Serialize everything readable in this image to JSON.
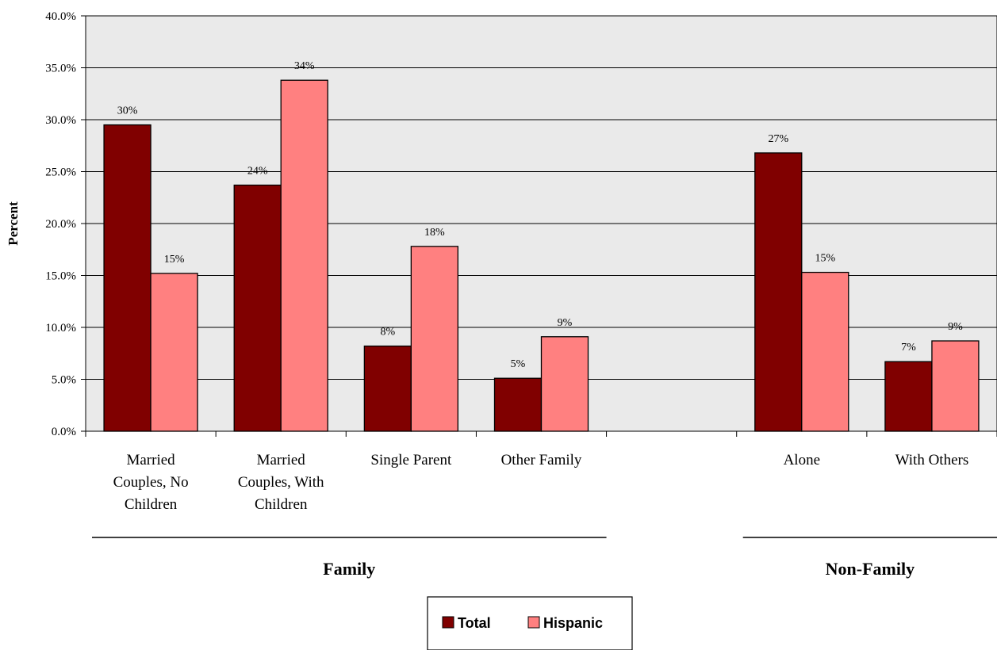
{
  "chart_data": {
    "type": "bar",
    "ylabel": "Percent",
    "ylim": [
      0,
      40
    ],
    "ytick_step": 5,
    "ytick_format_decimals": 1,
    "grid": true,
    "legend_placement": "bottom-center",
    "categories": [
      "Married Couples, No Children",
      "Married Couples, With Children",
      "Single Parent",
      "Other Family",
      "",
      "Alone",
      "With Others"
    ],
    "category_lines": [
      [
        "Married",
        "Couples, No",
        "Children"
      ],
      [
        "Married",
        "Couples, With",
        "Children"
      ],
      [
        "Single Parent"
      ],
      [
        "Other Family"
      ],
      [],
      [
        "Alone"
      ],
      [
        "With Others"
      ]
    ],
    "series": [
      {
        "name": "Total",
        "color": "#800000",
        "values": [
          29.5,
          23.7,
          8.2,
          5.1,
          null,
          26.8,
          6.7
        ],
        "labels": [
          "30%",
          "24%",
          "8%",
          "5%",
          "",
          "27%",
          "7%"
        ]
      },
      {
        "name": "Hispanic",
        "color": "#ff8080",
        "values": [
          15.2,
          33.8,
          17.8,
          9.1,
          null,
          15.3,
          8.7
        ],
        "labels": [
          "15%",
          "34%",
          "18%",
          "9%",
          "",
          "15%",
          "9%"
        ]
      }
    ],
    "groups": [
      {
        "name": "Family",
        "from": 0,
        "to": 3
      },
      {
        "name": "Non-Family",
        "from": 5,
        "to": 6
      }
    ],
    "plot_background": "#eaeaea"
  }
}
